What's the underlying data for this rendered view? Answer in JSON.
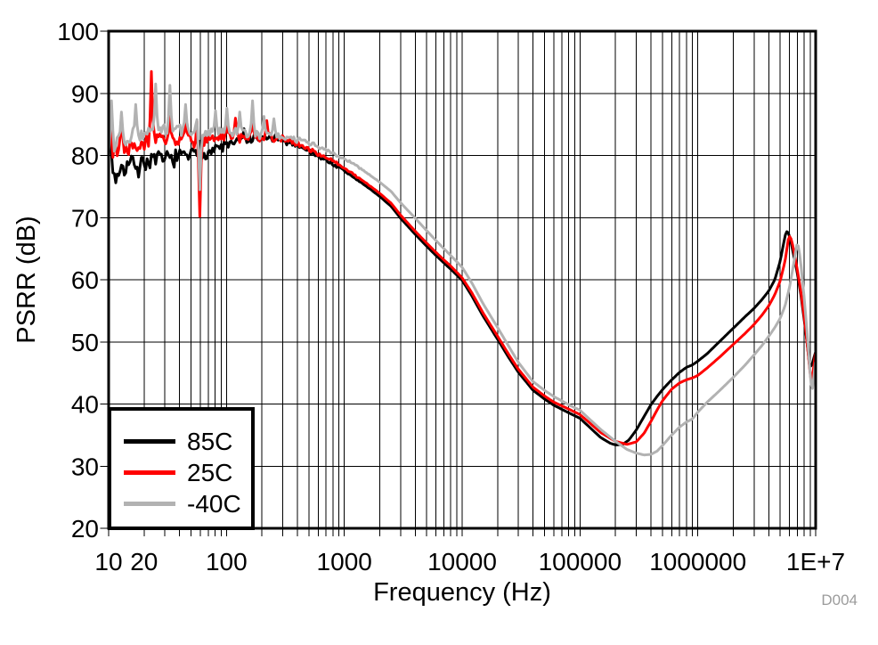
{
  "figure": {
    "watermark": "D004"
  },
  "chart_data": {
    "type": "line",
    "title": "",
    "xlabel": "Frequency (Hz)",
    "ylabel": "PSRR (dB)",
    "x_scale": "log",
    "xlim": [
      10,
      10000000
    ],
    "ylim": [
      20,
      100
    ],
    "grid": "vertical log minors + horizontal majors, black 1px, full frame",
    "legend_position": "bottom-left",
    "y_ticks": [
      20,
      30,
      40,
      50,
      60,
      70,
      80,
      90,
      100
    ],
    "x_tick_labels": [
      [
        10,
        "10"
      ],
      [
        20,
        "20"
      ],
      [
        100,
        "100"
      ],
      [
        1000,
        "1000"
      ],
      [
        10000,
        "10000"
      ],
      [
        100000,
        "100000"
      ],
      [
        1000000,
        "1000000"
      ],
      [
        10000000,
        "1E+7"
      ]
    ],
    "series": [
      {
        "name": "85C",
        "color": "#000000",
        "seed": 7,
        "noise": {
          "amp": 2.1,
          "f_end": 2000
        },
        "points": [
          [
            10,
            78
          ],
          [
            12,
            77.6
          ],
          [
            15,
            78.6
          ],
          [
            20,
            79
          ],
          [
            25,
            79.2
          ],
          [
            30,
            79.4
          ],
          [
            40,
            79.8
          ],
          [
            50,
            80.1
          ],
          [
            60,
            80.3
          ],
          [
            80,
            81
          ],
          [
            100,
            81.7
          ],
          [
            130,
            82.2
          ],
          [
            160,
            82.5
          ],
          [
            200,
            82.7
          ],
          [
            250,
            82.8
          ],
          [
            300,
            82.5
          ],
          [
            400,
            81.7
          ],
          [
            500,
            80.7
          ],
          [
            600,
            79.9
          ],
          [
            800,
            78.6
          ],
          [
            1000,
            77.5
          ],
          [
            1300,
            76
          ],
          [
            1600,
            74.8
          ],
          [
            2000,
            73.4
          ],
          [
            2500,
            71.8
          ],
          [
            3000,
            69.9
          ],
          [
            4000,
            67.3
          ],
          [
            5000,
            65.4
          ],
          [
            6000,
            63.9
          ],
          [
            7000,
            62.7
          ],
          [
            8000,
            61.7
          ],
          [
            10000,
            59.9
          ],
          [
            12000,
            57.5
          ],
          [
            15000,
            54.2
          ],
          [
            20000,
            50.4
          ],
          [
            25000,
            47.4
          ],
          [
            30000,
            45.1
          ],
          [
            40000,
            42.2
          ],
          [
            50000,
            40.8
          ],
          [
            60000,
            39.8
          ],
          [
            80000,
            38.6
          ],
          [
            100000,
            37.7
          ],
          [
            120000,
            36.3
          ],
          [
            150000,
            34.6
          ],
          [
            180000,
            33.7
          ],
          [
            200000,
            33.4
          ],
          [
            230000,
            33.5
          ],
          [
            260000,
            34.2
          ],
          [
            300000,
            35.8
          ],
          [
            350000,
            38
          ],
          [
            400000,
            39.9
          ],
          [
            450000,
            41.2
          ],
          [
            500000,
            42.3
          ],
          [
            600000,
            43.9
          ],
          [
            700000,
            45.1
          ],
          [
            800000,
            45.9
          ],
          [
            900000,
            46.3
          ],
          [
            1000000,
            46.9
          ],
          [
            1200000,
            48.1
          ],
          [
            1500000,
            49.9
          ],
          [
            2000000,
            52.2
          ],
          [
            2500000,
            54
          ],
          [
            3000000,
            55.4
          ],
          [
            3500000,
            56.8
          ],
          [
            4000000,
            58.2
          ],
          [
            4500000,
            60
          ],
          [
            5000000,
            63
          ],
          [
            5300000,
            65.5
          ],
          [
            5600000,
            67.7
          ],
          [
            5800000,
            67.8
          ],
          [
            6100000,
            66.5
          ],
          [
            6500000,
            64
          ],
          [
            7000000,
            61
          ],
          [
            7500000,
            57.5
          ],
          [
            8000000,
            53.5
          ],
          [
            8500000,
            49.5
          ],
          [
            8900000,
            45.9
          ],
          [
            9300000,
            46.3
          ],
          [
            9600000,
            47.3
          ],
          [
            10000000,
            48.4
          ]
        ],
        "spikes": [
          [
            10.4,
            86
          ],
          [
            11.6,
            75.6
          ],
          [
            18,
            76.5
          ],
          [
            60,
            82.3
          ],
          [
            140,
            84.3
          ]
        ]
      },
      {
        "name": "25C",
        "color": "#ff0000",
        "seed": 13,
        "noise": {
          "amp": 1.9,
          "f_end": 2000
        },
        "points": [
          [
            10,
            80.5
          ],
          [
            12,
            81
          ],
          [
            15,
            81.8
          ],
          [
            20,
            82.2
          ],
          [
            25,
            82.4
          ],
          [
            30,
            82.6
          ],
          [
            40,
            82.4
          ],
          [
            50,
            82.4
          ],
          [
            60,
            82.5
          ],
          [
            80,
            82.6
          ],
          [
            100,
            82.8
          ],
          [
            130,
            82.9
          ],
          [
            160,
            83
          ],
          [
            200,
            82.9
          ],
          [
            250,
            82.8
          ],
          [
            300,
            82.6
          ],
          [
            400,
            81.9
          ],
          [
            500,
            81
          ],
          [
            600,
            80.3
          ],
          [
            800,
            79.1
          ],
          [
            1000,
            78
          ],
          [
            1300,
            76.5
          ],
          [
            1600,
            75.3
          ],
          [
            2000,
            73.9
          ],
          [
            2500,
            72.3
          ],
          [
            3000,
            70.4
          ],
          [
            4000,
            67.8
          ],
          [
            5000,
            65.9
          ],
          [
            6000,
            64.4
          ],
          [
            7000,
            63.2
          ],
          [
            8000,
            62.2
          ],
          [
            10000,
            60.3
          ],
          [
            12000,
            58
          ],
          [
            15000,
            54.7
          ],
          [
            20000,
            50.9
          ],
          [
            25000,
            47.9
          ],
          [
            30000,
            45.6
          ],
          [
            40000,
            42.7
          ],
          [
            50000,
            41.3
          ],
          [
            60000,
            40.3
          ],
          [
            80000,
            39.2
          ],
          [
            100000,
            38.3
          ],
          [
            120000,
            37
          ],
          [
            150000,
            35.4
          ],
          [
            200000,
            34
          ],
          [
            250000,
            33.5
          ],
          [
            300000,
            33.9
          ],
          [
            350000,
            35.3
          ],
          [
            400000,
            37.2
          ],
          [
            450000,
            39
          ],
          [
            500000,
            40.5
          ],
          [
            600000,
            42.4
          ],
          [
            700000,
            43.4
          ],
          [
            800000,
            43.9
          ],
          [
            900000,
            44.2
          ],
          [
            1000000,
            44.6
          ],
          [
            1200000,
            45.8
          ],
          [
            1500000,
            47.4
          ],
          [
            2000000,
            49.6
          ],
          [
            2500000,
            51.3
          ],
          [
            3000000,
            52.8
          ],
          [
            3500000,
            54.3
          ],
          [
            4000000,
            55.8
          ],
          [
            4500000,
            57.6
          ],
          [
            5000000,
            59.8
          ],
          [
            5500000,
            63
          ],
          [
            5900000,
            66.9
          ],
          [
            6100000,
            67
          ],
          [
            6400000,
            65.5
          ],
          [
            7000000,
            61.5
          ],
          [
            7500000,
            58
          ],
          [
            8000000,
            54
          ],
          [
            8500000,
            49.5
          ],
          [
            9100000,
            43.7
          ],
          [
            9400000,
            44.5
          ],
          [
            9700000,
            46.5
          ],
          [
            10000000,
            48.6
          ]
        ],
        "spikes": [
          [
            10.4,
            87.5
          ],
          [
            13,
            86.5
          ],
          [
            23,
            93.5
          ],
          [
            33,
            86.3
          ],
          [
            45,
            86.8
          ],
          [
            57,
            92.5
          ],
          [
            60,
            70.2
          ],
          [
            100,
            85.6
          ],
          [
            120,
            86
          ],
          [
            165,
            85.8
          ],
          [
            220,
            85.6
          ]
        ]
      },
      {
        "name": "-40C",
        "color": "#b2b2b2",
        "seed": 29,
        "noise": {
          "amp": 1.9,
          "f_end": 2000
        },
        "points": [
          [
            10,
            81.5
          ],
          [
            12,
            82.3
          ],
          [
            15,
            83
          ],
          [
            20,
            83.8
          ],
          [
            25,
            84.2
          ],
          [
            30,
            84.3
          ],
          [
            40,
            84.1
          ],
          [
            50,
            83.9
          ],
          [
            60,
            83.8
          ],
          [
            80,
            83.6
          ],
          [
            100,
            83.6
          ],
          [
            130,
            83.6
          ],
          [
            160,
            83.5
          ],
          [
            200,
            83.4
          ],
          [
            250,
            83.3
          ],
          [
            300,
            83.1
          ],
          [
            400,
            82.6
          ],
          [
            500,
            82
          ],
          [
            600,
            81.4
          ],
          [
            800,
            80.4
          ],
          [
            1000,
            79.5
          ],
          [
            1300,
            78.2
          ],
          [
            1600,
            77
          ],
          [
            2000,
            75.7
          ],
          [
            2500,
            74.2
          ],
          [
            3000,
            72.4
          ],
          [
            4000,
            69.9
          ],
          [
            5000,
            67.9
          ],
          [
            6000,
            66.3
          ],
          [
            7000,
            65
          ],
          [
            8000,
            63.9
          ],
          [
            10000,
            62
          ],
          [
            12000,
            59.6
          ],
          [
            15000,
            56.2
          ],
          [
            20000,
            52.3
          ],
          [
            25000,
            49.2
          ],
          [
            30000,
            46.7
          ],
          [
            40000,
            43.6
          ],
          [
            50000,
            42.2
          ],
          [
            60000,
            41.2
          ],
          [
            80000,
            39.9
          ],
          [
            100000,
            39
          ],
          [
            120000,
            37.6
          ],
          [
            150000,
            35.9
          ],
          [
            200000,
            34
          ],
          [
            250000,
            32.7
          ],
          [
            300000,
            32.1
          ],
          [
            350000,
            31.8
          ],
          [
            400000,
            31.9
          ],
          [
            450000,
            32.4
          ],
          [
            500000,
            33.3
          ],
          [
            600000,
            35
          ],
          [
            700000,
            36.3
          ],
          [
            800000,
            37.1
          ],
          [
            900000,
            37.6
          ],
          [
            1000000,
            38.7
          ],
          [
            1200000,
            40.3
          ],
          [
            1500000,
            42
          ],
          [
            2000000,
            44.3
          ],
          [
            2500000,
            46.2
          ],
          [
            3000000,
            47.9
          ],
          [
            3500000,
            49.4
          ],
          [
            4000000,
            50.9
          ],
          [
            4500000,
            52.3
          ],
          [
            5000000,
            53.8
          ],
          [
            5500000,
            55.8
          ],
          [
            6000000,
            58.8
          ],
          [
            6500000,
            62.5
          ],
          [
            6900000,
            65.6
          ],
          [
            7100000,
            65.5
          ],
          [
            7400000,
            63.5
          ],
          [
            8000000,
            57
          ],
          [
            8500000,
            51
          ],
          [
            9000000,
            44.5
          ],
          [
            9300000,
            41.8
          ],
          [
            9600000,
            44
          ],
          [
            10000000,
            47.2
          ]
        ],
        "spikes": [
          [
            10.5,
            88.8
          ],
          [
            13,
            87
          ],
          [
            17,
            88.2
          ],
          [
            25,
            91.5
          ],
          [
            33,
            91.3
          ],
          [
            45,
            88.2
          ],
          [
            57,
            90.3
          ],
          [
            60,
            74.5
          ],
          [
            80,
            87.2
          ],
          [
            100,
            87.6
          ],
          [
            130,
            87
          ],
          [
            165,
            88.8
          ],
          [
            210,
            86.3
          ],
          [
            250,
            85.9
          ]
        ]
      }
    ]
  }
}
